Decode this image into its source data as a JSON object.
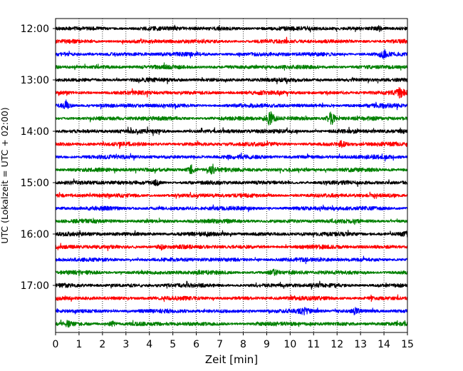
{
  "chart_data": {
    "type": "line",
    "title": "",
    "xlabel": "Zeit  [min]",
    "ylabel": "UTC (Lokalzeit = UTC + 02:00)",
    "xlim": [
      0,
      15
    ],
    "x_ticks": [
      0,
      1,
      2,
      3,
      4,
      5,
      6,
      7,
      8,
      9,
      10,
      11,
      12,
      13,
      14,
      15
    ],
    "grid": "vertical dotted",
    "y_tick_labels": [
      "12:00",
      "13:00",
      "14:00",
      "15:00",
      "16:00",
      "17:00"
    ],
    "trace_colors": [
      "#000000",
      "#ff0000",
      "#0000ff",
      "#008000"
    ],
    "traces": [
      {
        "start": "12:00",
        "color": "#000000",
        "events": [
          {
            "t": 13.8,
            "amp": 1.0
          }
        ]
      },
      {
        "start": "12:15",
        "color": "#ff0000",
        "events": []
      },
      {
        "start": "12:30",
        "color": "#0000ff",
        "events": [
          {
            "t": 14.0,
            "amp": 2.2
          }
        ]
      },
      {
        "start": "12:45",
        "color": "#008000",
        "events": []
      },
      {
        "start": "13:00",
        "color": "#000000",
        "events": []
      },
      {
        "start": "13:15",
        "color": "#ff0000",
        "events": [
          {
            "t": 14.7,
            "amp": 2.4
          }
        ]
      },
      {
        "start": "13:30",
        "color": "#0000ff",
        "events": [
          {
            "t": 0.45,
            "amp": 2.0
          }
        ]
      },
      {
        "start": "13:45",
        "color": "#008000",
        "events": [
          {
            "t": 9.15,
            "amp": 4.0
          },
          {
            "t": 11.75,
            "amp": 3.5
          }
        ]
      },
      {
        "start": "14:00",
        "color": "#000000",
        "events": []
      },
      {
        "start": "14:15",
        "color": "#ff0000",
        "events": [
          {
            "t": 12.2,
            "amp": 1.3
          }
        ]
      },
      {
        "start": "14:30",
        "color": "#0000ff",
        "events": []
      },
      {
        "start": "14:45",
        "color": "#008000",
        "events": [
          {
            "t": 5.8,
            "amp": 2.3
          },
          {
            "t": 6.7,
            "amp": 2.0
          }
        ]
      },
      {
        "start": "15:00",
        "color": "#000000",
        "events": [
          {
            "t": 4.3,
            "amp": 1.2
          }
        ]
      },
      {
        "start": "15:15",
        "color": "#ff0000",
        "events": []
      },
      {
        "start": "15:30",
        "color": "#0000ff",
        "events": []
      },
      {
        "start": "15:45",
        "color": "#008000",
        "events": []
      },
      {
        "start": "16:00",
        "color": "#000000",
        "events": [
          {
            "t": 14.95,
            "amp": 1.4
          }
        ]
      },
      {
        "start": "16:15",
        "color": "#ff0000",
        "events": [
          {
            "t": 4.5,
            "amp": 1.1
          }
        ]
      },
      {
        "start": "16:30",
        "color": "#0000ff",
        "events": []
      },
      {
        "start": "16:45",
        "color": "#008000",
        "events": [
          {
            "t": 9.3,
            "amp": 1.2
          }
        ]
      },
      {
        "start": "17:00",
        "color": "#000000",
        "events": []
      },
      {
        "start": "17:15",
        "color": "#ff0000",
        "events": []
      },
      {
        "start": "17:30",
        "color": "#0000ff",
        "events": [
          {
            "t": 10.6,
            "amp": 1.5
          },
          {
            "t": 12.8,
            "amp": 1.2
          }
        ]
      },
      {
        "start": "17:45",
        "color": "#008000",
        "events": [
          {
            "t": 0.5,
            "amp": 1.1
          },
          {
            "t": 2.4,
            "amp": 1.4
          }
        ]
      }
    ]
  }
}
